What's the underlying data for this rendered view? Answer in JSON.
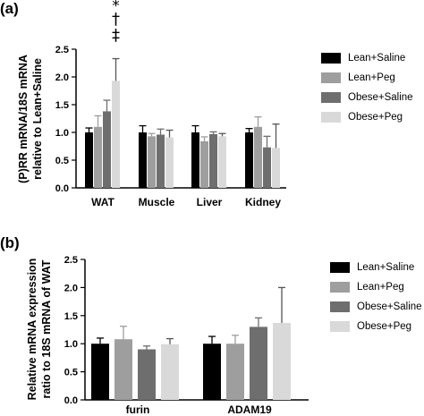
{
  "chart_data": [
    {
      "panel": "(a)",
      "type": "bar",
      "ylabel_lines": [
        "(P)RR mRNA/18S mRNA",
        "relative to Lean+Saline"
      ],
      "ylim": [
        0,
        2.5
      ],
      "yticks": [
        "0.0",
        "0.5",
        "1.0",
        "1.5",
        "2.0",
        "2.5"
      ],
      "categories": [
        "WAT",
        "Muscle",
        "Liver",
        "Kidney"
      ],
      "series": [
        {
          "name": "Lean+Saline",
          "color": "#000000",
          "values": [
            1.0,
            1.0,
            1.0,
            1.0
          ],
          "errors": [
            0.08,
            0.12,
            0.12,
            0.07
          ]
        },
        {
          "name": "Lean+Peg",
          "color": "#9e9e9e",
          "values": [
            1.1,
            0.93,
            0.84,
            1.1
          ],
          "errors": [
            0.2,
            0.05,
            0.08,
            0.18
          ]
        },
        {
          "name": "Obese+Saline",
          "color": "#6e6e6e",
          "values": [
            1.38,
            0.96,
            0.97,
            0.73
          ],
          "errors": [
            0.2,
            0.1,
            0.04,
            0.2
          ]
        },
        {
          "name": "Obese+Peg",
          "color": "#d9d9d9",
          "values": [
            1.93,
            0.91,
            0.93,
            0.72
          ],
          "errors": [
            0.4,
            0.13,
            0.05,
            0.43
          ]
        }
      ],
      "annotations": {
        "category": "WAT",
        "series": "Obese+Peg",
        "symbols": [
          "*",
          "†",
          "‡"
        ]
      },
      "legend_position": "right"
    },
    {
      "panel": "(b)",
      "type": "bar",
      "ylabel_lines": [
        "Relative mRNA expression",
        "ratio to 18S mRNA of WAT"
      ],
      "ylim": [
        0,
        2.5
      ],
      "yticks": [
        "0.0",
        "0.5",
        "1.0",
        "1.5",
        "2.0",
        "2.5"
      ],
      "categories": [
        "furin",
        "ADAM19"
      ],
      "series": [
        {
          "name": "Lean+Saline",
          "color": "#000000",
          "values": [
            1.0,
            1.0
          ],
          "errors": [
            0.1,
            0.13
          ]
        },
        {
          "name": "Lean+Peg",
          "color": "#9e9e9e",
          "values": [
            1.08,
            1.0
          ],
          "errors": [
            0.23,
            0.15
          ]
        },
        {
          "name": "Obese+Saline",
          "color": "#6e6e6e",
          "values": [
            0.9,
            1.3
          ],
          "errors": [
            0.06,
            0.16
          ]
        },
        {
          "name": "Obese+Peg",
          "color": "#d9d9d9",
          "values": [
            0.99,
            1.37
          ],
          "errors": [
            0.1,
            0.63
          ]
        }
      ],
      "legend_position": "right"
    }
  ],
  "panels": {
    "a": "(a)",
    "b": "(b)"
  }
}
